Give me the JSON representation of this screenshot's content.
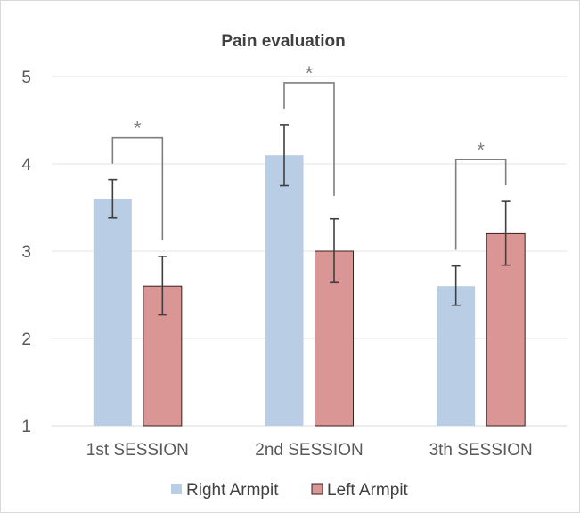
{
  "chart_data": {
    "type": "bar",
    "title": "Pain evaluation",
    "categories": [
      "1st SESSION",
      "2nd SESSION",
      "3th SESSION"
    ],
    "series": [
      {
        "name": "Right Armpit",
        "values": [
          3.6,
          4.1,
          2.6
        ],
        "error_low": [
          3.38,
          3.75,
          2.38
        ],
        "error_high": [
          3.82,
          4.45,
          2.83
        ],
        "color": "#b9cde5",
        "outlined": false
      },
      {
        "name": "Left Armpit",
        "values": [
          2.6,
          3.0,
          3.2
        ],
        "error_low": [
          2.27,
          2.64,
          2.84
        ],
        "error_high": [
          2.94,
          3.37,
          3.57
        ],
        "color": "#d99694",
        "outlined": true
      }
    ],
    "ylim": [
      1,
      5
    ],
    "yticks": [
      1,
      2,
      3,
      4,
      5
    ],
    "xlabel": "",
    "ylabel": "",
    "grid": true,
    "legend_position": "bottom",
    "significance": [
      {
        "category": 0,
        "label": "*"
      },
      {
        "category": 1,
        "label": "*"
      },
      {
        "category": 2,
        "label": "*"
      }
    ]
  }
}
